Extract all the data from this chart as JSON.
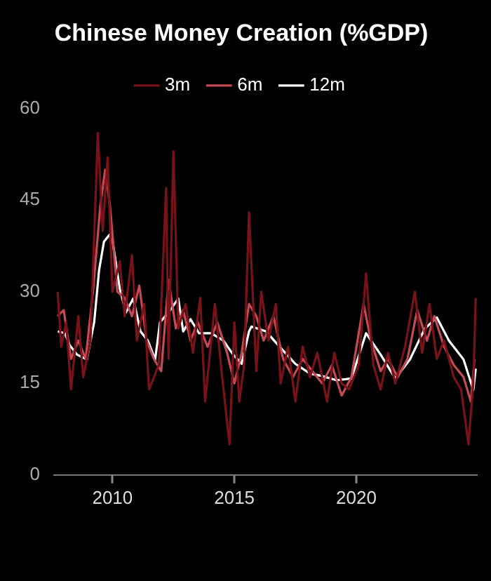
{
  "chart_data": {
    "type": "line",
    "title": "Chinese Money Creation (%GDP)",
    "legend": "top",
    "grid": false,
    "marker": "none",
    "line_style": "solid",
    "xlim": [
      2007.6,
      2024.95
    ],
    "xticks": [
      2010,
      2015,
      2020
    ],
    "ylim": [
      0,
      60
    ],
    "yticks": [
      0,
      15,
      30,
      45,
      60
    ],
    "series": [
      {
        "name": "3m",
        "color": "#7a1219",
        "x": [
          2007.75,
          2007.9,
          2008.1,
          2008.3,
          2008.6,
          2008.8,
          2009.1,
          2009.4,
          2009.6,
          2009.8,
          2010.0,
          2010.3,
          2010.5,
          2010.8,
          2011.0,
          2011.3,
          2011.5,
          2011.9,
          2012.2,
          2012.3,
          2012.5,
          2012.7,
          2013.0,
          2013.3,
          2013.6,
          2013.8,
          2014.2,
          2014.5,
          2014.8,
          2015.0,
          2015.2,
          2015.4,
          2015.6,
          2015.9,
          2016.1,
          2016.4,
          2016.7,
          2016.9,
          2017.2,
          2017.5,
          2017.8,
          2018.1,
          2018.4,
          2018.8,
          2019.1,
          2019.4,
          2019.7,
          2020.1,
          2020.4,
          2020.7,
          2021.0,
          2021.3,
          2021.6,
          2022.0,
          2022.4,
          2022.7,
          2023.0,
          2023.3,
          2023.6,
          2024.0,
          2024.3,
          2024.6,
          2024.8,
          2024.9
        ],
        "values": [
          30,
          21,
          25,
          14,
          26,
          16,
          22,
          56,
          40,
          52,
          30,
          35,
          26,
          36,
          22,
          28,
          14,
          18,
          47,
          19,
          53,
          24,
          28,
          20,
          29,
          12,
          28,
          16,
          5,
          25,
          12,
          18,
          43,
          17,
          30,
          22,
          28,
          15,
          21,
          12,
          21,
          16,
          20,
          12,
          20,
          15,
          14,
          18,
          33,
          18,
          14,
          20,
          15,
          21,
          30,
          20,
          28,
          19,
          22,
          16,
          14,
          5,
          15,
          29
        ]
      },
      {
        "name": "6m",
        "color": "#c44a55",
        "x": [
          2007.75,
          2008.0,
          2008.3,
          2008.6,
          2008.9,
          2009.2,
          2009.5,
          2009.7,
          2009.9,
          2010.2,
          2010.5,
          2010.8,
          2011.1,
          2011.4,
          2011.7,
          2012.0,
          2012.3,
          2012.6,
          2012.9,
          2013.2,
          2013.5,
          2013.9,
          2014.3,
          2014.7,
          2015.0,
          2015.3,
          2015.6,
          2015.9,
          2016.2,
          2016.6,
          2017.0,
          2017.4,
          2017.8,
          2018.2,
          2018.6,
          2019.0,
          2019.4,
          2019.8,
          2020.3,
          2020.6,
          2021.0,
          2021.3,
          2021.7,
          2022.1,
          2022.5,
          2022.9,
          2023.2,
          2023.6,
          2024.0,
          2024.4,
          2024.7,
          2024.85
        ],
        "values": [
          26,
          27,
          19,
          22,
          19,
          30,
          44,
          50,
          44,
          30,
          29,
          26,
          31,
          22,
          19,
          17,
          32,
          24,
          27,
          22,
          25,
          21,
          25,
          20,
          15,
          20,
          28,
          26,
          22,
          26,
          19,
          16,
          19,
          17,
          15,
          18,
          13,
          16,
          28,
          22,
          17,
          19,
          16,
          19,
          27,
          22,
          26,
          21,
          18,
          16,
          12,
          19
        ]
      },
      {
        "name": "12m",
        "color": "#ffffff",
        "x": [
          2007.76,
          2008.05,
          2008.25,
          2008.55,
          2008.95,
          2009.25,
          2009.45,
          2009.65,
          2009.95,
          2010.1,
          2010.3,
          2010.55,
          2010.85,
          2011.15,
          2011.45,
          2011.75,
          2011.95,
          2012.3,
          2012.7,
          2012.9,
          2013.2,
          2013.55,
          2014.05,
          2014.55,
          2014.95,
          2015.3,
          2015.6,
          2015.7,
          2016.3,
          2016.9,
          2017.5,
          2018.1,
          2018.6,
          2019.2,
          2019.8,
          2020.4,
          2021.0,
          2021.6,
          2022.2,
          2022.8,
          2023.3,
          2023.8,
          2024.4,
          2024.8,
          2024.9
        ],
        "values": [
          23.5,
          23.2,
          21.2,
          19.7,
          18.9,
          25,
          33.5,
          38.2,
          39.7,
          35.8,
          30.5,
          26.6,
          28.9,
          23.5,
          22,
          18.9,
          25,
          26.6,
          28.9,
          23.5,
          25.5,
          23.2,
          23.2,
          22,
          19.7,
          18.2,
          23.5,
          24.3,
          23.5,
          20.8,
          18.2,
          16.6,
          16.2,
          15.5,
          15.8,
          23.2,
          19.7,
          15.8,
          18.9,
          23.9,
          25.8,
          22,
          18.9,
          13.9,
          17.4
        ]
      }
    ]
  }
}
